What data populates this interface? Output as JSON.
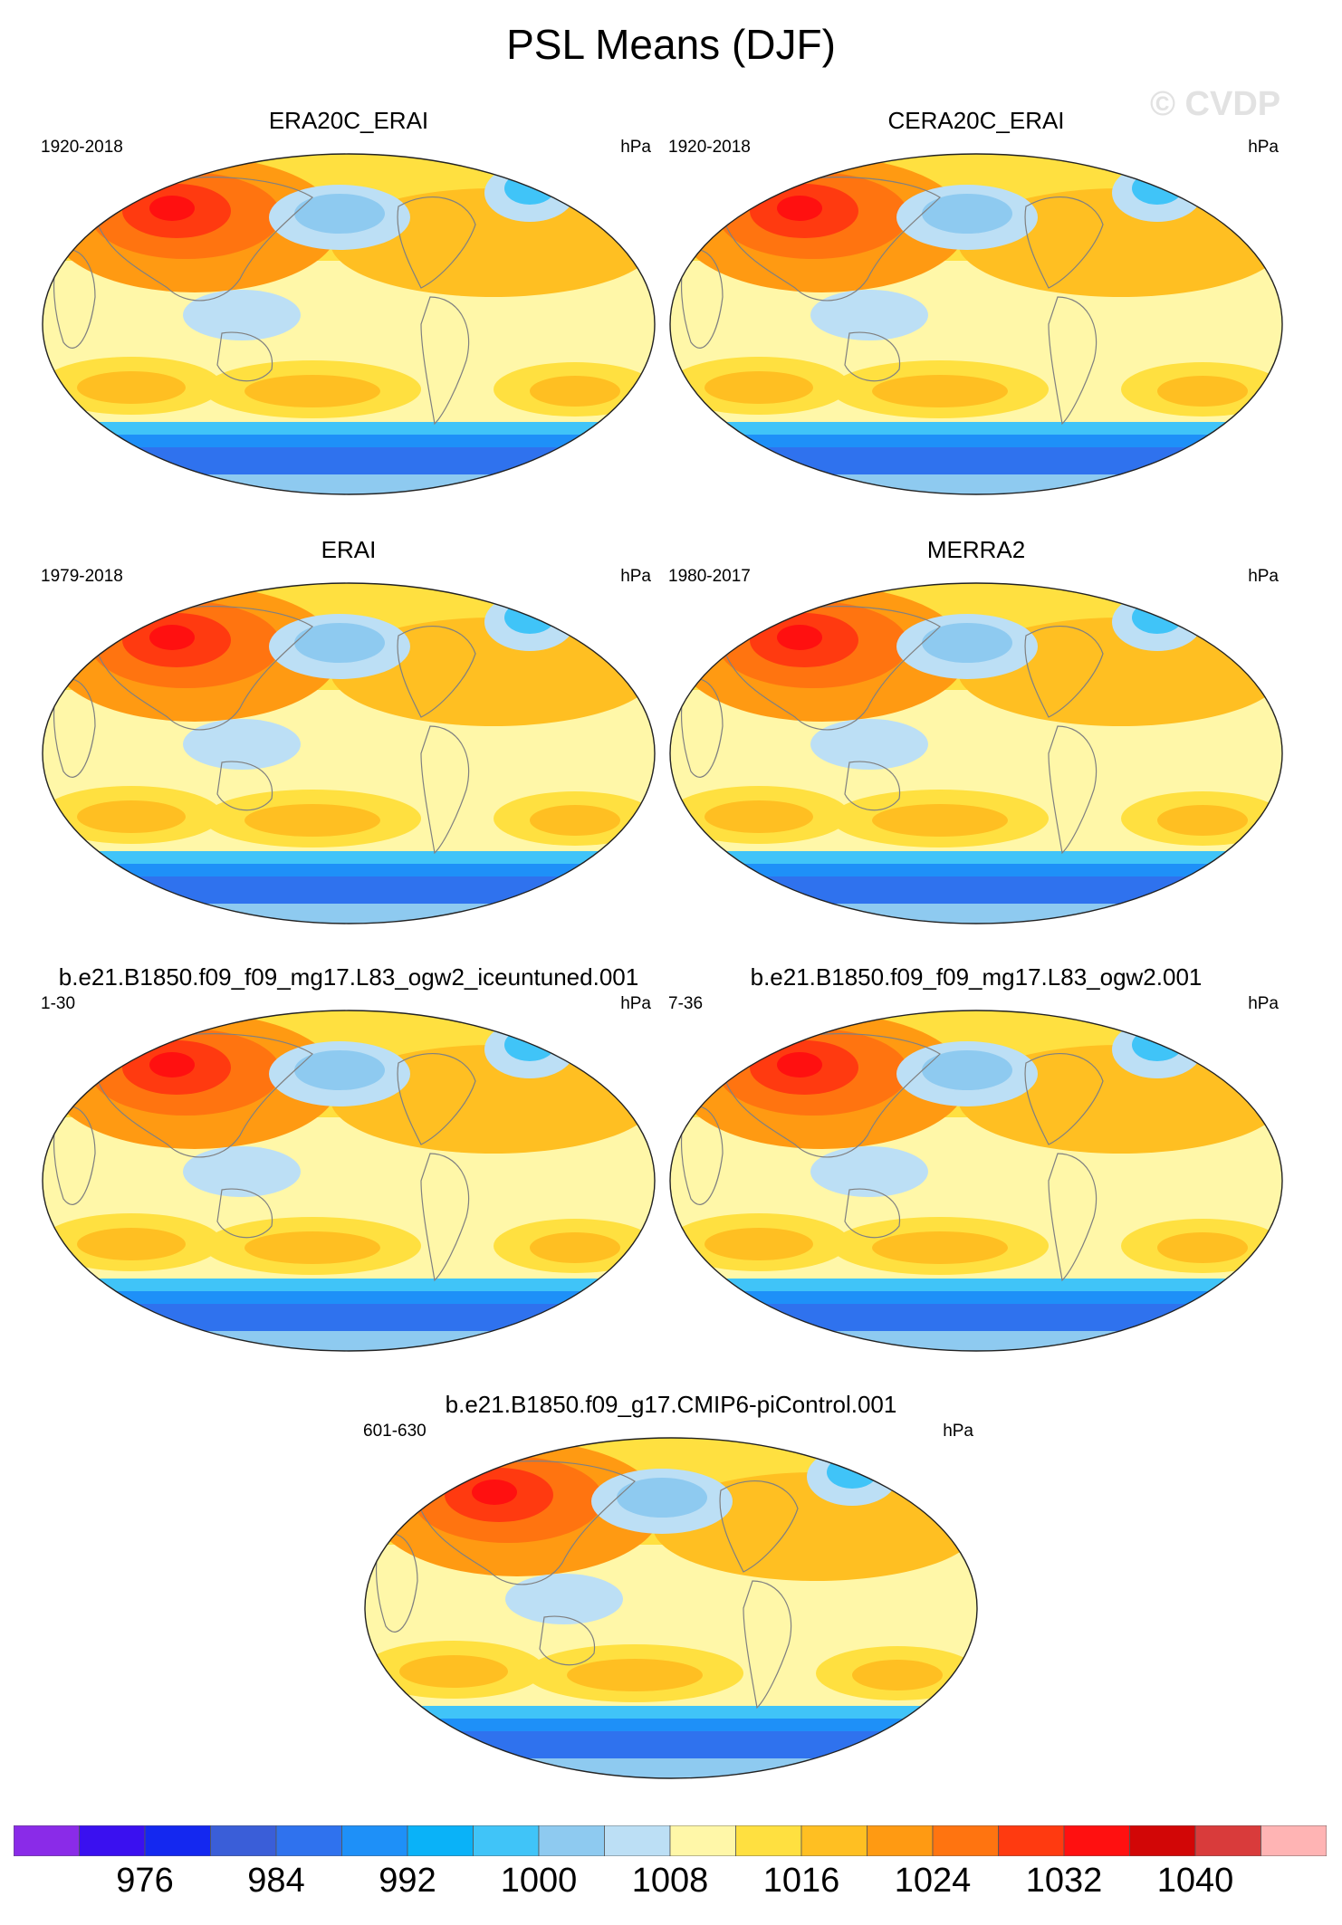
{
  "title": "PSL Means (DJF)",
  "watermark": "© CVDP",
  "panels": [
    {
      "title": "ERA20C_ERAI",
      "years": "1920-2018",
      "units": "hPa"
    },
    {
      "title": "CERA20C_ERAI",
      "years": "1920-2018",
      "units": "hPa"
    },
    {
      "title": "ERAI",
      "years": "1979-2018",
      "units": "hPa"
    },
    {
      "title": "MERRA2",
      "years": "1980-2017",
      "units": "hPa"
    },
    {
      "title": "b.e21.B1850.f09_f09_mg17.L83_ogw2_iceuntuned.001",
      "years": "1-30",
      "units": "hPa"
    },
    {
      "title": "b.e21.B1850.f09_f09_mg17.L83_ogw2.001",
      "years": "7-36",
      "units": "hPa"
    },
    {
      "title": "b.e21.B1850.f09_g17.CMIP6-piControl.001",
      "years": "601-630",
      "units": "hPa"
    }
  ],
  "colorbar": {
    "colors": [
      "#8a2be8",
      "#3a10f0",
      "#1428f0",
      "#3a5ed8",
      "#2f72ee",
      "#1e90f8",
      "#0ab2f8",
      "#40c4f8",
      "#8ecaf0",
      "#bcdff5",
      "#fff7a8",
      "#ffe040",
      "#ffbf22",
      "#ff9a12",
      "#ff7410",
      "#ff3a10",
      "#ff1010",
      "#d20606",
      "#d93b3b",
      "#ffb4b4"
    ],
    "labels": [
      "976",
      "984",
      "992",
      "1000",
      "1008",
      "1016",
      "1024",
      "1032",
      "1040"
    ]
  },
  "map_palette": {
    "background": "#fff7a8",
    "land_outline": "#808080",
    "shelf": "#ffe040",
    "subtropical_high": "#ffbf22",
    "high_core": "#ff9a12",
    "siberian_high_outer": "#ff7410",
    "siberian_high_inner": "#ff3a10",
    "siberian_high_core": "#ff1010",
    "aleutian_low_outer": "#bcdff5",
    "aleutian_low_inner": "#8ecaf0",
    "icelandic_low": "#40c4f8",
    "maritime_low": "#bcdff5",
    "southern_band_outer": "#40c4f8",
    "southern_band_mid": "#1e90f8",
    "southern_band_inner": "#2f72ee",
    "antarctic_light": "#8ecaf0"
  }
}
